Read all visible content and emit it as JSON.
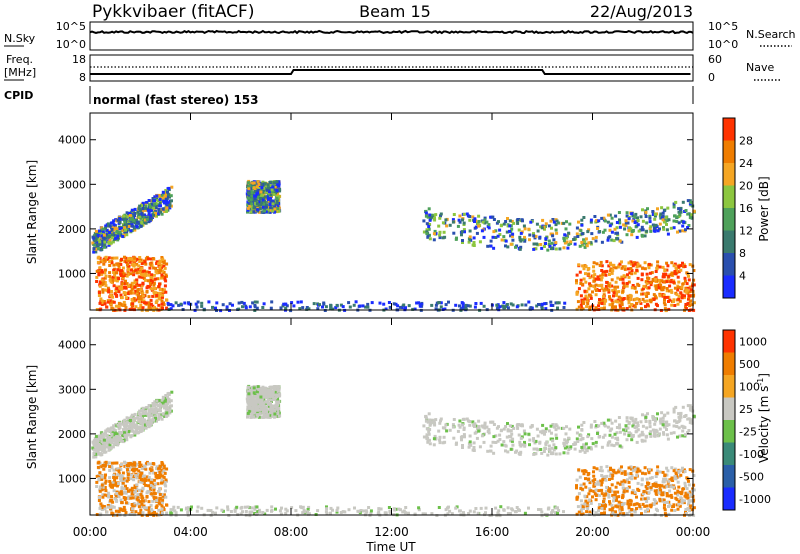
{
  "header": {
    "title": "Pykkvibaer (fitACF)",
    "beam": "Beam 15",
    "date": "22/Aug/2013"
  },
  "sky_panel": {
    "left_label": "N.Sky",
    "right_label": "N.Search",
    "left_ticks": [
      "10^5",
      "10^0"
    ],
    "right_ticks": [
      "10^5",
      "10^0"
    ]
  },
  "freq_panel": {
    "left_label_line1": "Freq.",
    "left_label_line2": "[MHz]",
    "right_label": "Nave",
    "left_ticks": [
      "18",
      "8"
    ],
    "right_ticks": [
      "60",
      "0"
    ]
  },
  "cpid": {
    "label": "CPID",
    "mode_text": "normal (fast stereo) 153"
  },
  "chart_data": [
    {
      "type": "heatmap",
      "name": "power",
      "ylabel": "Slant Range [km]",
      "xlabel": "",
      "ylim": [
        180,
        4600
      ],
      "y_ticks": [
        1000,
        2000,
        3000,
        4000
      ],
      "colorbar": {
        "label": "Power [dB]",
        "range": [
          0,
          32
        ],
        "ticks": [
          "4",
          "8",
          "12",
          "16",
          "20",
          "24",
          "28"
        ],
        "colors": [
          "#1a2cff",
          "#2a4fae",
          "#3a7a6e",
          "#4ea15a",
          "#8cc63f",
          "#f5a623",
          "#ef7d00",
          "#ff3300"
        ]
      }
    },
    {
      "type": "heatmap",
      "name": "velocity",
      "ylabel": "Slant Range [km]",
      "xlabel": "Time UT",
      "ylim": [
        180,
        4600
      ],
      "y_ticks": [
        1000,
        2000,
        3000,
        4000
      ],
      "colorbar": {
        "label": "Velocity [m s",
        "label_sup": "-1",
        "label_close": "]",
        "ticks": [
          "1000",
          "500",
          "100",
          "25",
          "-25",
          "-100",
          "-500",
          "-1000"
        ],
        "colors": [
          "#1a2cff",
          "#2a5fa8",
          "#3a8a78",
          "#6cc04a",
          "#c8c8c2",
          "#f5a623",
          "#ef7d00",
          "#ff3300"
        ]
      }
    }
  ],
  "time_axis": {
    "label": "Time UT",
    "ticks": [
      "00:00",
      "04:00",
      "08:00",
      "12:00",
      "16:00",
      "20:00",
      "00:00"
    ]
  },
  "echo_regions": [
    {
      "t0": 0.05,
      "t1": 3.2,
      "r0": 1650,
      "r1": 2900,
      "kind": "band"
    },
    {
      "t0": 0.2,
      "t1": 3.0,
      "r0": 200,
      "r1": 1400,
      "kind": "near"
    },
    {
      "t0": 6.2,
      "t1": 7.5,
      "r0": 2400,
      "r1": 3100,
      "kind": "patch"
    },
    {
      "t0": 13.2,
      "t1": 24.0,
      "r0": 1400,
      "r1": 2900,
      "kind": "band2"
    },
    {
      "t0": 19.3,
      "t1": 24.0,
      "r0": 200,
      "r1": 1300,
      "kind": "near"
    },
    {
      "t0": 3.0,
      "t1": 19.0,
      "r0": 200,
      "r1": 400,
      "kind": "ground"
    }
  ]
}
